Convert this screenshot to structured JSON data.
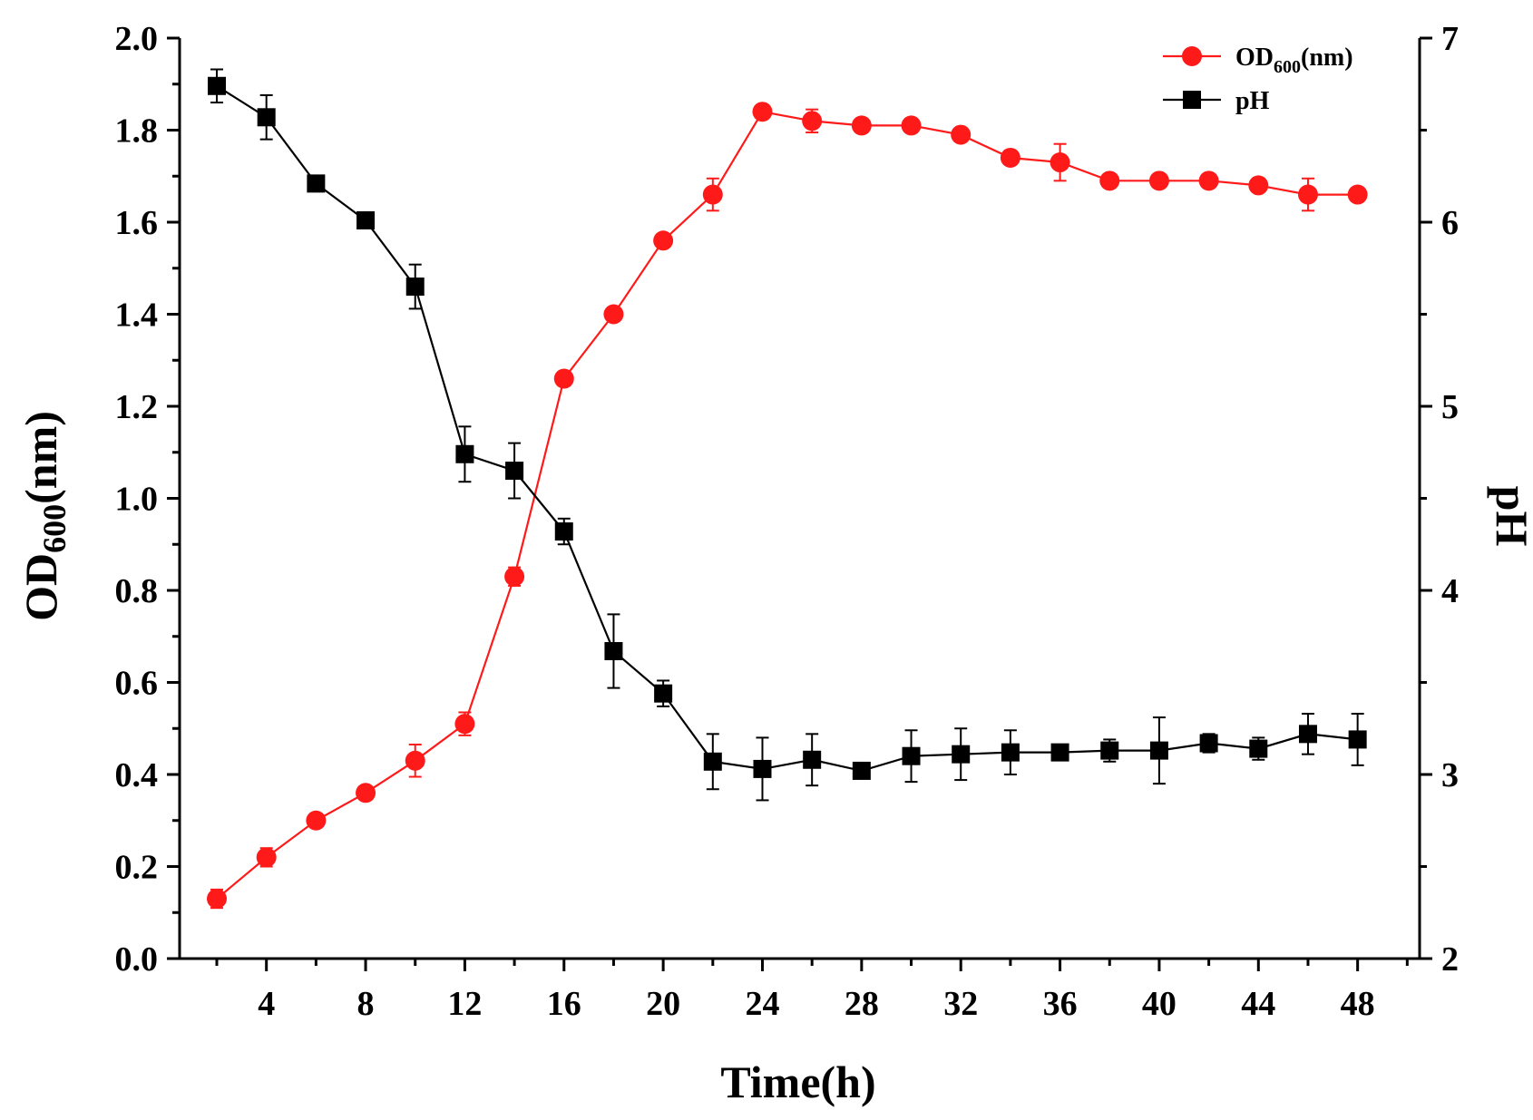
{
  "chart_data": {
    "type": "line",
    "title": "",
    "xlabel": "Time(h)",
    "ylabel_left": {
      "main": "OD",
      "sub": "600",
      "suffix": "(nm)"
    },
    "ylabel_right": "pH",
    "xlim": [
      0.5,
      50.5
    ],
    "x_ticks": [
      "4",
      "8",
      "12",
      "16",
      "20",
      "24",
      "28",
      "32",
      "36",
      "40",
      "44",
      "48"
    ],
    "x_tick_values": [
      4,
      8,
      12,
      16,
      20,
      24,
      28,
      32,
      36,
      40,
      44,
      48
    ],
    "ylim_left": [
      0.0,
      2.0
    ],
    "y_left_ticks": [
      "0.0",
      "0.2",
      "0.4",
      "0.6",
      "0.8",
      "1.0",
      "1.2",
      "1.4",
      "1.6",
      "1.8",
      "2.0"
    ],
    "ylim_right": [
      2,
      7
    ],
    "y_right_ticks": [
      "2",
      "3",
      "4",
      "5",
      "6",
      "7"
    ],
    "grid": false,
    "legend_position": "top-right",
    "x": [
      2,
      4,
      6,
      8,
      10,
      12,
      14,
      16,
      18,
      20,
      22,
      24,
      26,
      28,
      30,
      32,
      34,
      36,
      38,
      40,
      42,
      44,
      46,
      48
    ],
    "series": [
      {
        "name": "OD600(nm)",
        "legend": {
          "main": "OD",
          "sub": "600",
          "suffix": "(nm)"
        },
        "axis": "left",
        "color": "#ff1a1a",
        "marker": "circle",
        "values": [
          0.13,
          0.22,
          0.3,
          0.36,
          0.43,
          0.51,
          0.83,
          1.26,
          1.4,
          1.56,
          1.66,
          1.84,
          1.82,
          1.81,
          1.81,
          1.79,
          1.74,
          1.73,
          1.69,
          1.69,
          1.69,
          1.68,
          1.66,
          1.66
        ],
        "errors": [
          0.02,
          0.02,
          0.015,
          0.01,
          0.035,
          0.025,
          0.02,
          0.015,
          0.01,
          0.01,
          0.035,
          0.01,
          0.025,
          0.01,
          0.01,
          0.01,
          0.01,
          0.04,
          0.01,
          0.01,
          0.01,
          0.01,
          0.035,
          0.01
        ]
      },
      {
        "name": "pH",
        "legend": {
          "main": "pH",
          "sub": "",
          "suffix": ""
        },
        "axis": "right",
        "color": "#000000",
        "marker": "square",
        "values": [
          6.74,
          6.57,
          6.21,
          6.01,
          5.65,
          4.74,
          4.65,
          4.32,
          3.67,
          3.44,
          3.07,
          3.03,
          3.08,
          3.02,
          3.1,
          3.11,
          3.12,
          3.12,
          3.13,
          3.13,
          3.17,
          3.14,
          3.22,
          3.19
        ],
        "errors": [
          0.09,
          0.12,
          0.04,
          0.02,
          0.12,
          0.15,
          0.15,
          0.07,
          0.2,
          0.07,
          0.15,
          0.17,
          0.14,
          0.03,
          0.14,
          0.14,
          0.12,
          0.02,
          0.06,
          0.18,
          0.05,
          0.06,
          0.11,
          0.14
        ]
      }
    ]
  }
}
